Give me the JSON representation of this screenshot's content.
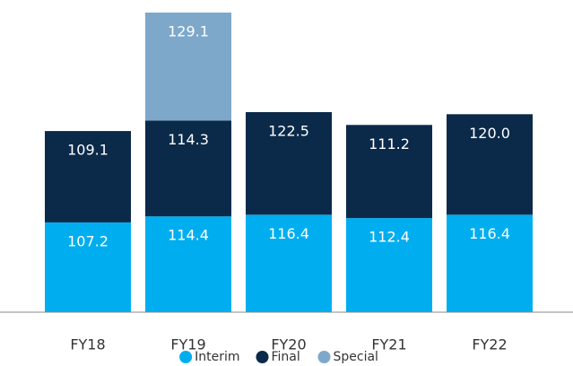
{
  "chart_data": {
    "type": "stacked_bar",
    "categories": [
      "FY18",
      "FY19",
      "FY20",
      "FY21",
      "FY22"
    ],
    "series": [
      {
        "name": "Interim",
        "color": "#00aeef",
        "values": [
          107.2,
          114.4,
          116.4,
          112.4,
          116.4
        ]
      },
      {
        "name": "Final",
        "color": "#0b2a4a",
        "values": [
          109.1,
          114.3,
          122.5,
          111.2,
          120.0
        ],
        "value_labels": [
          "109.1",
          "114.3",
          "122.5",
          "111.2",
          "120.0"
        ]
      },
      {
        "name": "Special",
        "color": "#7ea8ca",
        "values": [
          null,
          129.1,
          null,
          null,
          null
        ]
      }
    ],
    "legend": "bottom"
  }
}
